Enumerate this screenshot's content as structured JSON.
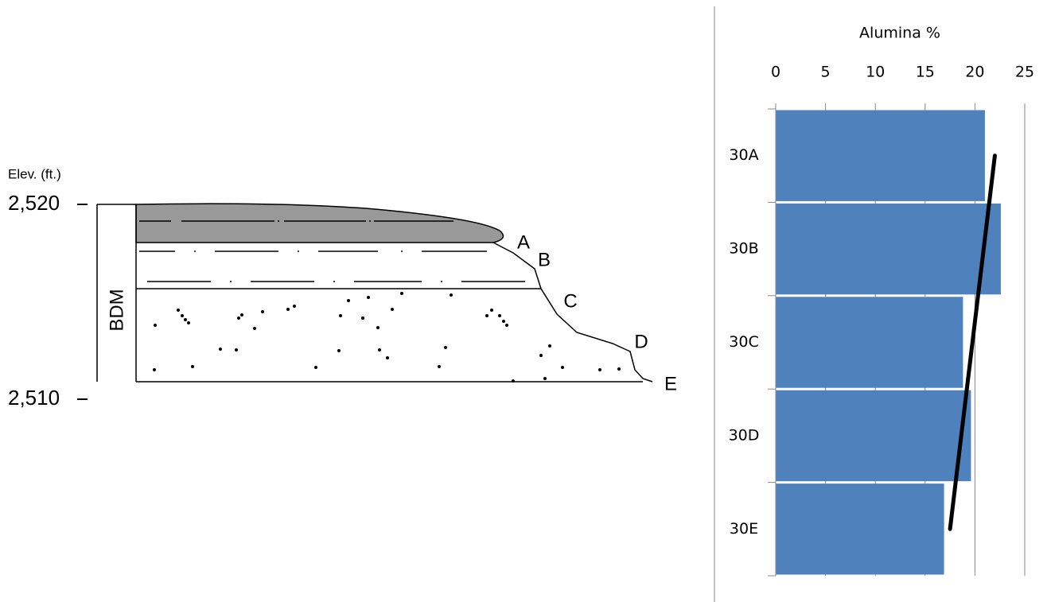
{
  "diagram": {
    "elevation_label": "Elev. (ft.)",
    "elevation_lim": [
      2510,
      2520
    ],
    "elevation_ticks": [
      {
        "value": 2520,
        "label": "2,520"
      },
      {
        "value": 2510,
        "label": "2,510"
      }
    ],
    "unit_label": "BDM",
    "point_labels": [
      "A",
      "B",
      "C",
      "D",
      "E"
    ]
  },
  "chart_data": {
    "type": "bar",
    "orientation": "horizontal",
    "title": "Alumina %",
    "categories": [
      "30A",
      "30B",
      "30C",
      "30D",
      "30E"
    ],
    "values": [
      21,
      22.6,
      18.8,
      19.6,
      16.9
    ],
    "color": "#4f81bd",
    "xlim": [
      0,
      25
    ],
    "xticks": [
      0,
      5,
      10,
      15,
      20,
      25
    ],
    "grid": true,
    "trendline": {
      "color": "#000000",
      "start": 22,
      "end": 17.5
    }
  }
}
